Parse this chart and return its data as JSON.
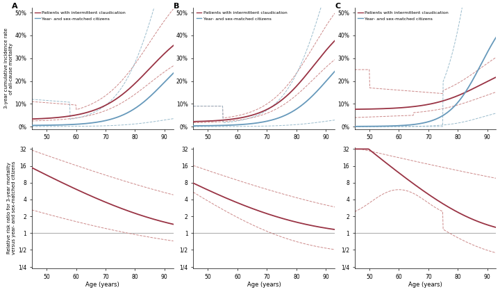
{
  "age_min": 45,
  "age_max": 93,
  "panel_labels": [
    "A",
    "B",
    "C"
  ],
  "top_ylabel": "3-year cumulative incidence rate\nof all-cause mortality",
  "bottom_ylabel": "Relative risk ratio for 3-year mortality\nversus year- and sex-matched citizens",
  "xlabel": "Age (years)",
  "top_yticks": [
    0.0,
    0.1,
    0.2,
    0.3,
    0.4,
    0.5
  ],
  "top_yticklabels": [
    "0%",
    "10%",
    "20%",
    "30%",
    "40%",
    "50%"
  ],
  "bottom_yticklabels": [
    "1/4",
    "1/2",
    "1",
    "2",
    "4",
    "8",
    "16",
    "32"
  ],
  "xticks": [
    50,
    60,
    70,
    80,
    90
  ],
  "red_color": "#993344",
  "blue_color": "#6699BB",
  "red_ci_color": "#CC8888",
  "blue_ci_color": "#99BBCC",
  "bg_color": "#FFFFFF",
  "legend_labels": [
    "Patients with intermittent claudication",
    "Year- and sex-matched citizens"
  ]
}
